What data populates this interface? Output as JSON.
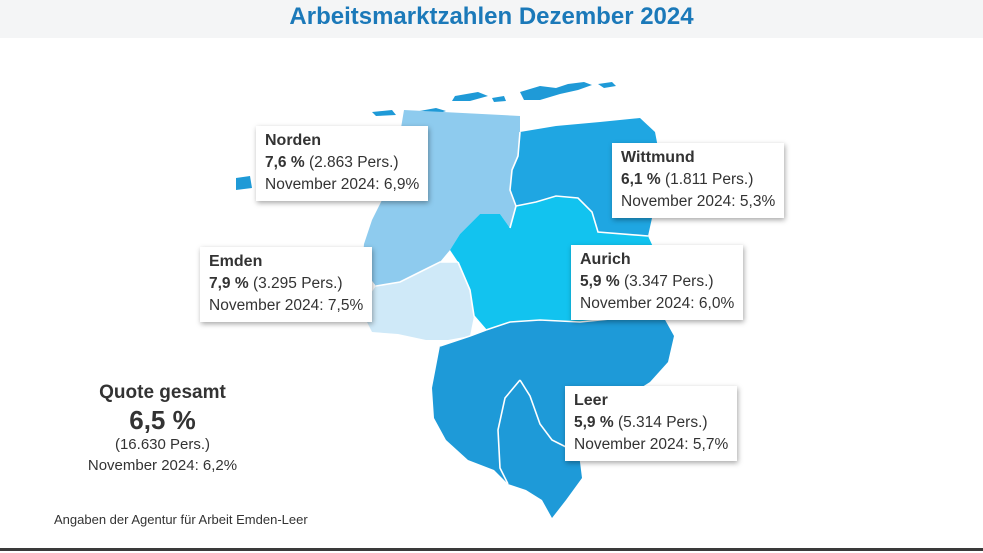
{
  "title": "Arbeitsmarktzahlen Dezember 2024",
  "colors": {
    "title": "#1b79b9",
    "norden": "#8ecbee",
    "emden": "#cfe9f8",
    "wittmund": "#1fa6e2",
    "aurich": "#12c3ef",
    "leer": "#1e9ad8",
    "islands": "#1f9ad7"
  },
  "regions": {
    "norden": {
      "name": "Norden",
      "rate": "7,6 %",
      "persons": " (2.863 Pers.)",
      "previous": "November 2024: 6,9%"
    },
    "wittmund": {
      "name": "Wittmund",
      "rate": "6,1 %",
      "persons": " (1.811 Pers.)",
      "previous": "November 2024: 5,3%"
    },
    "emden": {
      "name": "Emden",
      "rate": "7,9 %",
      "persons": " (3.295 Pers.)",
      "previous": "November 2024: 7,5%"
    },
    "aurich": {
      "name": "Aurich",
      "rate": "5,9 %",
      "persons": " (3.347 Pers.)",
      "previous": "November 2024: 6,0%"
    },
    "leer": {
      "name": "Leer",
      "rate": "5,9 %",
      "persons": " (5.314 Pers.)",
      "previous": "November 2024: 5,7%"
    }
  },
  "summary": {
    "label": "Quote gesamt",
    "rate": "6,5 %",
    "persons": "(16.630 Pers.)",
    "previous": "November 2024: 6,2%"
  },
  "source": "Angaben der Agentur für Arbeit Emden-Leer"
}
